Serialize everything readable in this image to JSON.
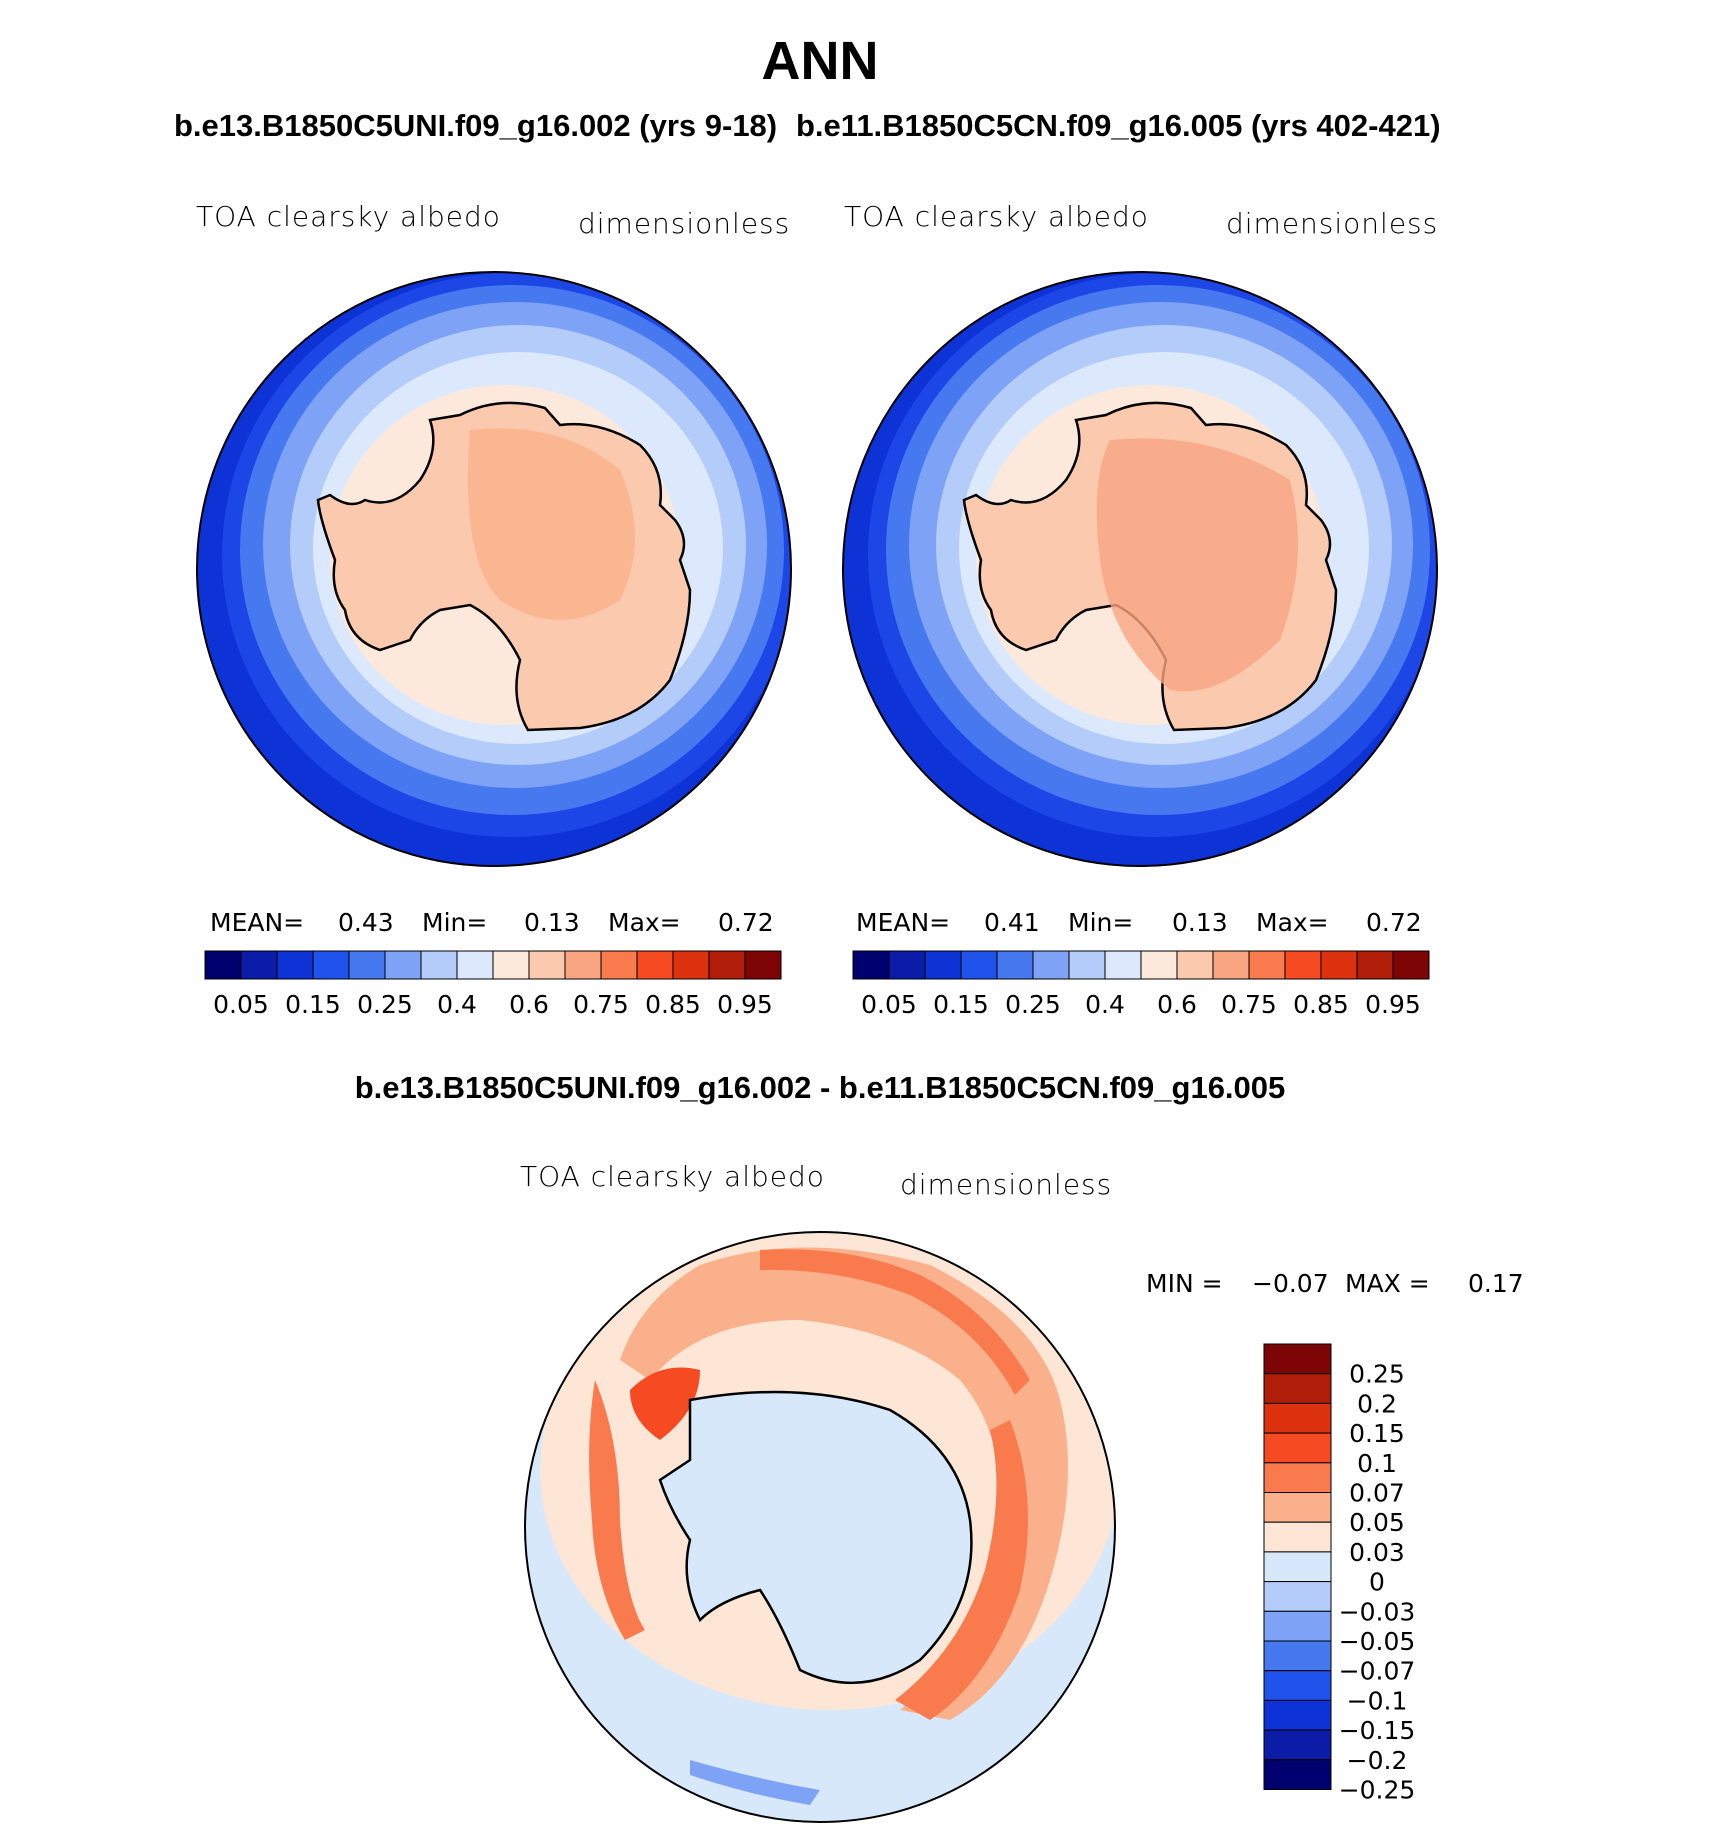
{
  "main_title": "ANN",
  "panels": [
    {
      "case_title": "b.e13.B1850C5UNI.f09_g16.002 (yrs 9-18)",
      "variable": "TOA clearsky albedo",
      "units": "dimensionless",
      "stats": {
        "mean_label": "MEAN=",
        "mean": "0.43",
        "min_label": "Min=",
        "min": "0.13",
        "max_label": "Max=",
        "max": "0.72"
      }
    },
    {
      "case_title": "b.e11.B1850C5CN.f09_g16.005 (yrs 402-421)",
      "variable": "TOA clearsky albedo",
      "units": "dimensionless",
      "stats": {
        "mean_label": "MEAN=",
        "mean": "0.41",
        "min_label": "Min=",
        "min": "0.13",
        "max_label": "Max=",
        "max": "0.72"
      }
    }
  ],
  "colorbar": {
    "colors": [
      "#00006e",
      "#0a1ca8",
      "#0d33d6",
      "#2052ec",
      "#4678f0",
      "#7ea2f6",
      "#b4ccfa",
      "#dce9fd",
      "#fde9db",
      "#fbc9ad",
      "#f9a582",
      "#f97a4d",
      "#f54a22",
      "#dd3210",
      "#b01d08",
      "#7d0506"
    ],
    "tick_labels": [
      "0.05",
      "0.15",
      "0.25",
      "0.4",
      "0.6",
      "0.75",
      "0.85",
      "0.95"
    ]
  },
  "diff": {
    "title": "b.e13.B1850C5UNI.f09_g16.002 - b.e11.B1850C5CN.f09_g16.005",
    "variable": "TOA clearsky albedo",
    "units": "dimensionless",
    "min_label": "MIN =",
    "min": "−0.07",
    "max_label": "MAX =",
    "max": "0.17",
    "colorbar": {
      "colors": [
        "#7d0506",
        "#b01d08",
        "#dd3210",
        "#f54a22",
        "#f97a4d",
        "#fbb08c",
        "#fde6d6",
        "#d8e8fb",
        "#b4ccfa",
        "#7ea2f6",
        "#4678f0",
        "#2052ec",
        "#0d33d6",
        "#0a1ca8",
        "#00006e"
      ],
      "labels": [
        "0.25",
        "0.2",
        "0.15",
        "0.1",
        "0.07",
        "0.05",
        "0.03",
        "0",
        "−0.03",
        "−0.05",
        "−0.07",
        "−0.1",
        "−0.15",
        "−0.2",
        "−0.25"
      ]
    }
  }
}
